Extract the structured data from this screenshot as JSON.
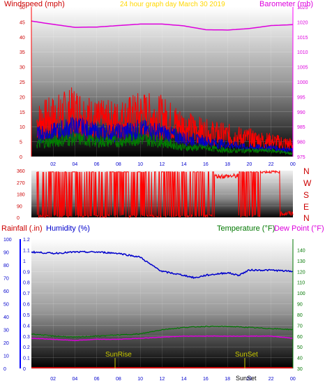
{
  "colors": {
    "wind": "#ff0000",
    "gust": "#ff0000",
    "avgwind": "#0000cc",
    "minwind": "#008000",
    "baro": "#dd00dd",
    "dir": "#ff0000",
    "humidity": "#0000cc",
    "temp": "#007700",
    "dew": "#dd00dd",
    "rain": "#cc0000",
    "sun": "#cccc00",
    "header_title": "#ffd700"
  },
  "header": {
    "left_label": "Windspeed (mph)",
    "center_label": "24 hour graph day   March 30 2019",
    "right_label": "Barometer (mb)"
  },
  "panel2": {
    "dir_letters": [
      "N",
      "W",
      "S",
      "E",
      "N"
    ]
  },
  "panel3": {
    "rain_label": "Rainfall (.in)",
    "humidity_label": "Humidity (%)",
    "temp_label": "Temperature (°F)",
    "dew_label": "Dew Point (°F)",
    "sunrise_label": "SunRise",
    "sunset_label": "SunSet",
    "bottom_label": "SunSet"
  },
  "chart_data": [
    {
      "type": "line",
      "x_ticks": [
        "02",
        "04",
        "06",
        "08",
        "10",
        "12",
        "14",
        "16",
        "18",
        "20",
        "22",
        "00"
      ],
      "y_left": {
        "label": "Windspeed (mph)",
        "ylim": [
          0,
          50
        ],
        "ticks": [
          0,
          5,
          10,
          15,
          20,
          25,
          30,
          35,
          40,
          45,
          50
        ]
      },
      "y_right": {
        "label": "Barometer (mb)",
        "ylim": [
          975,
          1025
        ],
        "ticks": [
          975,
          980,
          985,
          990,
          995,
          1000,
          1005,
          1010,
          1015,
          1020,
          1025
        ]
      },
      "series": [
        {
          "axis": "left",
          "x": [
            0,
            2,
            4,
            6,
            8,
            10,
            12,
            14,
            16,
            18,
            20,
            22,
            24
          ],
          "values": [
            11,
            13,
            15,
            12,
            12,
            14,
            13,
            10,
            8,
            7,
            6,
            5,
            4
          ]
        },
        {
          "axis": "left",
          "x": [
            0,
            2,
            4,
            6,
            8,
            10,
            12,
            14,
            16,
            18,
            20,
            22,
            24
          ],
          "values": [
            7,
            8,
            10,
            8,
            8,
            9,
            8,
            6,
            5,
            4,
            3,
            3,
            2
          ]
        },
        {
          "axis": "left",
          "x": [
            0,
            2,
            4,
            6,
            8,
            10,
            12,
            14,
            16,
            18,
            20,
            22,
            24
          ],
          "values": [
            4,
            5,
            6,
            5,
            5,
            6,
            5,
            3,
            3,
            2,
            2,
            2,
            1
          ]
        },
        {
          "axis": "right",
          "x": [
            0,
            2,
            4,
            6,
            8,
            10,
            12,
            14,
            16,
            18,
            20,
            22,
            24
          ],
          "values": [
            1020.3,
            1019.2,
            1018.2,
            1018.3,
            1018.8,
            1019.3,
            1019.3,
            1018.7,
            1017.4,
            1017.3,
            1017.8,
            1018.8,
            1019.1
          ]
        }
      ]
    },
    {
      "type": "line",
      "y_left": {
        "ylim": [
          0,
          360
        ],
        "ticks": [
          0,
          90,
          180,
          270,
          360
        ]
      },
      "series": [
        {
          "x": [
            0,
            2,
            4,
            6,
            8,
            10,
            12,
            14,
            16,
            17,
            18,
            19,
            20,
            21,
            22,
            23,
            24
          ],
          "values": [
            0,
            0,
            0,
            0,
            0,
            0,
            0,
            0,
            0,
            320,
            300,
            310,
            30,
            300,
            320,
            40,
            30
          ]
        }
      ]
    },
    {
      "type": "line",
      "x_ticks": [
        "02",
        "04",
        "06",
        "08",
        "10",
        "12",
        "14",
        "16",
        "18",
        "20",
        "22",
        "00"
      ],
      "y_left": {
        "label": "Rainfall (.in)",
        "ylim": [
          0,
          1.2
        ],
        "ticks": [
          0,
          0.1,
          0.2,
          0.3,
          0.4,
          0.5,
          0.6,
          0.7,
          0.8,
          0.9,
          1,
          1.1,
          1.2
        ]
      },
      "y_left2": {
        "label": "Humidity (%)",
        "ylim": [
          0,
          100
        ],
        "ticks": [
          0,
          10,
          20,
          30,
          40,
          50,
          60,
          70,
          80,
          90,
          100
        ]
      },
      "y_right": {
        "label": "Temperature (°F) / Dew Point (°F)",
        "ylim": [
          30,
          150
        ],
        "ticks": [
          30,
          40,
          50,
          60,
          70,
          80,
          90,
          100,
          110,
          120,
          130,
          140
        ]
      },
      "series": [
        {
          "axis": "humidity",
          "x": [
            0,
            2,
            4,
            6,
            8,
            10,
            11,
            12,
            14,
            15,
            16,
            18,
            19,
            20,
            22,
            24
          ],
          "values": [
            90,
            89,
            90,
            90,
            89,
            86,
            80,
            75,
            72,
            70,
            72,
            74,
            72,
            76,
            76,
            75
          ]
        },
        {
          "axis": "temp",
          "x": [
            0,
            2,
            4,
            6,
            8,
            10,
            12,
            14,
            16,
            18,
            20,
            22,
            24
          ],
          "values": [
            62,
            60,
            59,
            60,
            61,
            62,
            66,
            68,
            69,
            69,
            68,
            67,
            66
          ]
        },
        {
          "axis": "temp",
          "x": [
            0,
            2,
            4,
            6,
            8,
            10,
            12,
            14,
            16,
            18,
            20,
            22,
            24
          ],
          "values": [
            58,
            57,
            56,
            57,
            57,
            58,
            59,
            60,
            60,
            60,
            60,
            60,
            58
          ]
        },
        {
          "axis": "rain",
          "x": [
            0,
            24
          ],
          "values": [
            0,
            0
          ]
        }
      ],
      "annotations": [
        {
          "text": "SunRise",
          "x": 7.5
        },
        {
          "text": "SunSet",
          "x": 19.5
        }
      ]
    }
  ]
}
